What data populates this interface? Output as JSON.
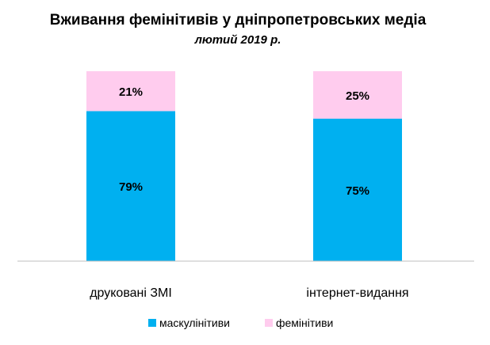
{
  "chart_data": {
    "type": "bar",
    "stacked": true,
    "percent": true,
    "title": "Вживання фемінітивів у дніпропетровських медіа",
    "subtitle": "лютий 2019 р.",
    "categories": [
      "друковані ЗМІ",
      "інтернет-видання"
    ],
    "series": [
      {
        "name": "маскулінітиви",
        "values": [
          79,
          75
        ],
        "labels": [
          "79%",
          "75%"
        ],
        "color": "#00B0F0"
      },
      {
        "name": "фемінітиви",
        "values": [
          21,
          25
        ],
        "labels": [
          "21%",
          "25%"
        ],
        "color": "#FFCCEE"
      }
    ],
    "ylim": [
      0,
      100
    ],
    "grid": false,
    "legend": "bottom"
  }
}
